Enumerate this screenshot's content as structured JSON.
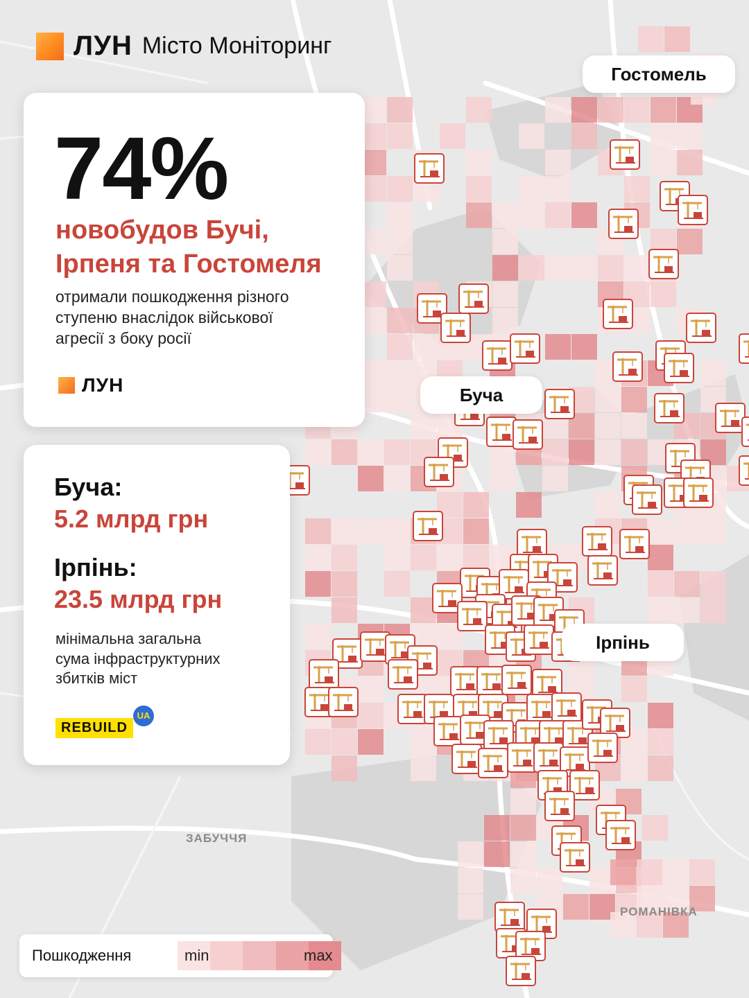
{
  "header": {
    "logo": "ЛУН",
    "subtitle": "Місто Моніторинг"
  },
  "stat_card": {
    "percent": "74%",
    "headline_line1": "новобудов Бучі,",
    "headline_line2": "Ірпеня та Гостомеля",
    "description_line1": "отримали пошкодження різного",
    "description_line2": "ступеню внаслідок військової",
    "description_line3": "агресії з боку росії",
    "logo": "ЛУН"
  },
  "losses_card": {
    "city1": "Буча:",
    "amount1": "5.2 млрд грн",
    "city2": "Ірпінь:",
    "amount2": "23.5 млрд грн",
    "description_line1": "мінімальна загальна",
    "description_line2": "сума інфраструктурних",
    "description_line3": "збитків міст",
    "partner_logo": "REBUILD",
    "partner_badge": "UA"
  },
  "map": {
    "city_labels": {
      "hostomel": "Гостомель",
      "bucha": "Буча",
      "irpin": "Ірпінь"
    },
    "region_labels": {
      "zabuchchia": "ЗАБУЧЧЯ",
      "romanivka": "РОМАНІВКА"
    },
    "marker_icon": "construction-crane-icon"
  },
  "legend": {
    "title": "Пошкодження",
    "min": "min",
    "max": "max"
  },
  "colors": {
    "accent_red": "#c9453a",
    "brand_orange": "#f26b1d",
    "heat_scale": [
      "#f9e3e3",
      "#f6d0d1",
      "#f1bcbd",
      "#eba3a5",
      "#e38b8e"
    ]
  }
}
